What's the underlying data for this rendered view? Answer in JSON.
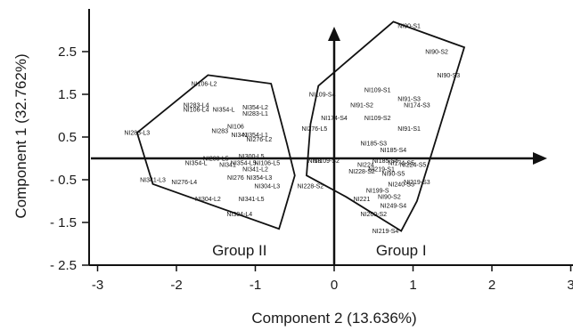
{
  "chart_data": {
    "type": "scatter",
    "title": "",
    "xlabel": "Component 2 (13.636%)",
    "ylabel": "Component 1 (32.762%)",
    "xlim": [
      -3,
      3
    ],
    "ylim": [
      -2.5,
      3.5
    ],
    "x_ticks": [
      {
        "v": -3,
        "label": "-3"
      },
      {
        "v": -2,
        "label": "-2"
      },
      {
        "v": -1,
        "label": "-1"
      },
      {
        "v": 0,
        "label": "0"
      },
      {
        "v": 1,
        "label": "1"
      },
      {
        "v": 2,
        "label": "2"
      },
      {
        "v": 3,
        "label": "3"
      }
    ],
    "y_ticks": [
      {
        "v": 2.5,
        "label": "2.5"
      },
      {
        "v": 1.5,
        "label": "1.5"
      },
      {
        "v": 0.5,
        "label": "0.5"
      },
      {
        "v": -0.5,
        "label": "- 0.5"
      },
      {
        "v": -1.5,
        "label": "- 1.5"
      },
      {
        "v": -2.5,
        "label": "- 2.5"
      }
    ],
    "groups": [
      {
        "name": "Group II",
        "label_pos": [
          -1.2,
          -2.15
        ],
        "hull": [
          [
            -2.5,
            0.6
          ],
          [
            -1.6,
            1.95
          ],
          [
            -0.8,
            1.75
          ],
          [
            -0.6,
            0.35
          ],
          [
            -0.5,
            -0.4
          ],
          [
            -0.65,
            -1.35
          ],
          [
            -0.7,
            -1.65
          ],
          [
            -2.3,
            -0.6
          ]
        ],
        "points": [
          {
            "label": "NI106-L2",
            "x": -1.65,
            "y": 1.75
          },
          {
            "label": "NI283-L4",
            "x": -1.75,
            "y": 1.25
          },
          {
            "label": "NI106-L4",
            "x": -1.75,
            "y": 1.15
          },
          {
            "label": "NI354-L",
            "x": -1.4,
            "y": 1.15
          },
          {
            "label": "NI354-L2",
            "x": -1.0,
            "y": 1.2
          },
          {
            "label": "NI283-L1",
            "x": -1.0,
            "y": 1.05
          },
          {
            "label": "NI283-L3",
            "x": -2.5,
            "y": 0.6
          },
          {
            "label": "NI283",
            "x": -1.45,
            "y": 0.65
          },
          {
            "label": "NI106",
            "x": -1.25,
            "y": 0.75
          },
          {
            "label": "NI341",
            "x": -1.2,
            "y": 0.55
          },
          {
            "label": "NI354-L1",
            "x": -1.0,
            "y": 0.55
          },
          {
            "label": "NI276-L2",
            "x": -0.95,
            "y": 0.45
          },
          {
            "label": "NI283-L5",
            "x": -1.5,
            "y": 0.0
          },
          {
            "label": "NI300-L5",
            "x": -1.05,
            "y": 0.05
          },
          {
            "label": "NI354-L",
            "x": -1.75,
            "y": -0.1
          },
          {
            "label": "NI341",
            "x": -1.35,
            "y": -0.15
          },
          {
            "label": "NI354-L5",
            "x": -1.15,
            "y": -0.1
          },
          {
            "label": "NI106-L5",
            "x": -0.85,
            "y": -0.1
          },
          {
            "label": "NI341-L2",
            "x": -1.0,
            "y": -0.25
          },
          {
            "label": "NI341-L3",
            "x": -2.3,
            "y": -0.5
          },
          {
            "label": "NI276-L4",
            "x": -1.9,
            "y": -0.55
          },
          {
            "label": "NI276",
            "x": -1.25,
            "y": -0.45
          },
          {
            "label": "NI354-L3",
            "x": -0.95,
            "y": -0.45
          },
          {
            "label": "NI304-L3",
            "x": -0.85,
            "y": -0.65
          },
          {
            "label": "NI304-L2",
            "x": -1.6,
            "y": -0.95
          },
          {
            "label": "NI341-L5",
            "x": -1.05,
            "y": -0.95
          },
          {
            "label": "NI304-L4",
            "x": -1.2,
            "y": -1.3
          }
        ]
      },
      {
        "name": "Group I",
        "label_pos": [
          0.85,
          -2.15
        ],
        "hull": [
          [
            -0.2,
            1.7
          ],
          [
            0.75,
            3.2
          ],
          [
            1.65,
            2.6
          ],
          [
            1.3,
            0.5
          ],
          [
            1.05,
            -1.0
          ],
          [
            0.85,
            -1.7
          ],
          [
            0.15,
            -0.9
          ],
          [
            -0.35,
            -0.4
          ],
          [
            -0.3,
            0.8
          ]
        ],
        "points": [
          {
            "label": "NI90-S1",
            "x": 0.95,
            "y": 3.1
          },
          {
            "label": "NI90-S2",
            "x": 1.3,
            "y": 2.5
          },
          {
            "label": "NI90-S3",
            "x": 1.45,
            "y": 1.95
          },
          {
            "label": "NI109-S4",
            "x": -0.15,
            "y": 1.5
          },
          {
            "label": "NI109-S1",
            "x": 0.55,
            "y": 1.6
          },
          {
            "label": "NI91-S3",
            "x": 0.95,
            "y": 1.4
          },
          {
            "label": "NI174-S3",
            "x": 1.05,
            "y": 1.25
          },
          {
            "label": "NI91-S2",
            "x": 0.35,
            "y": 1.25
          },
          {
            "label": "NI174-S4",
            "x": 0.0,
            "y": 0.95
          },
          {
            "label": "NI109-S2",
            "x": 0.55,
            "y": 0.95
          },
          {
            "label": "NI91-S1",
            "x": 0.95,
            "y": 0.7
          },
          {
            "label": "NI276-L5",
            "x": -0.25,
            "y": 0.7
          },
          {
            "label": "NI185-S3",
            "x": 0.5,
            "y": 0.35
          },
          {
            "label": "NI185-S4",
            "x": 0.75,
            "y": 0.2
          },
          {
            "label": "NI18",
            "x": -0.25,
            "y": -0.05
          },
          {
            "label": "NI109-S2",
            "x": -0.1,
            "y": -0.05
          },
          {
            "label": "NI224",
            "x": 0.4,
            "y": -0.15
          },
          {
            "label": "NI185-S5",
            "x": 0.65,
            "y": -0.05
          },
          {
            "label": "NI174-S5",
            "x": 0.85,
            "y": -0.1
          },
          {
            "label": "NI224-S5",
            "x": 1.0,
            "y": -0.15
          },
          {
            "label": "NI228-S2",
            "x": 0.35,
            "y": -0.3
          },
          {
            "label": "NI219-S1",
            "x": 0.6,
            "y": -0.25
          },
          {
            "label": "NI90-S5",
            "x": 0.75,
            "y": -0.35
          },
          {
            "label": "NI228-S2",
            "x": -0.3,
            "y": -0.65
          },
          {
            "label": "NI199-S",
            "x": 0.55,
            "y": -0.75
          },
          {
            "label": "NI240-S3",
            "x": 0.85,
            "y": -0.6
          },
          {
            "label": "NI219-S3",
            "x": 1.05,
            "y": -0.55
          },
          {
            "label": "NI90-S2",
            "x": 0.7,
            "y": -0.9
          },
          {
            "label": "NI221",
            "x": 0.35,
            "y": -0.95
          },
          {
            "label": "NI249-S4",
            "x": 0.75,
            "y": -1.1
          },
          {
            "label": "NI260-S2",
            "x": 0.5,
            "y": -1.3
          },
          {
            "label": "NI219-S4",
            "x": 0.65,
            "y": -1.7
          }
        ]
      }
    ]
  }
}
